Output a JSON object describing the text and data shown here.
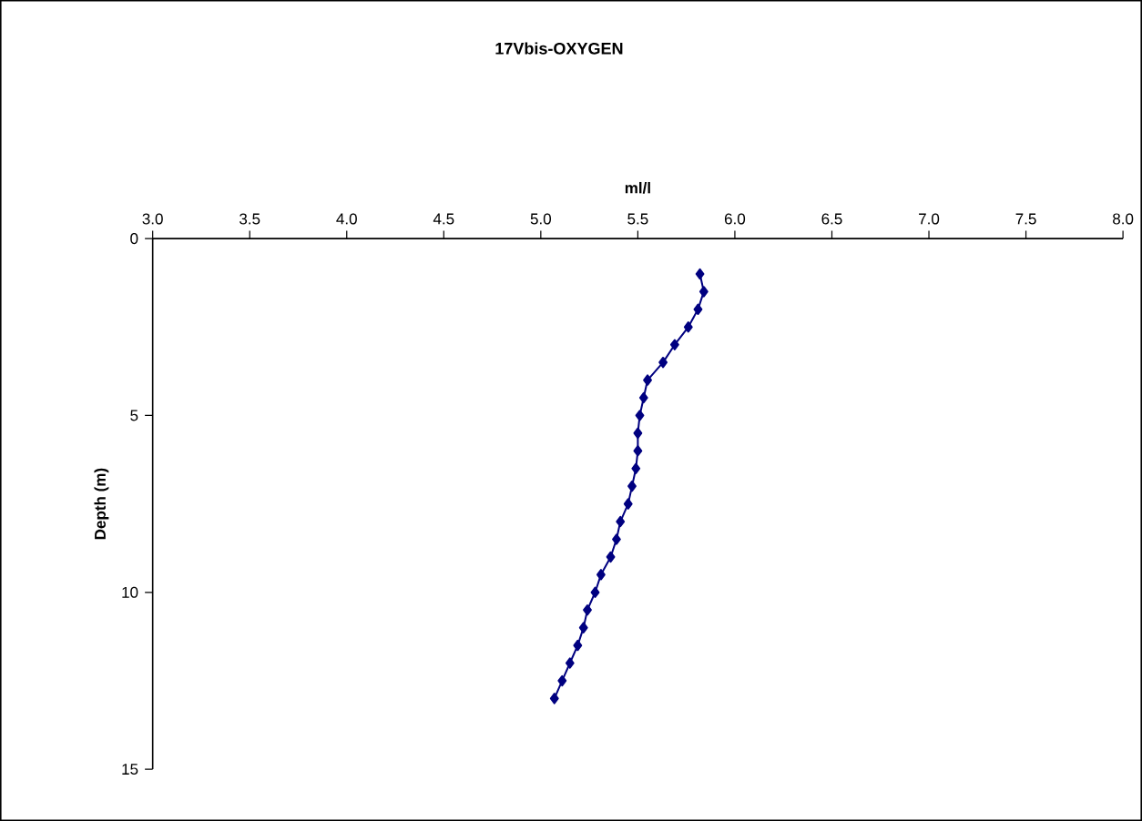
{
  "chart_data": {
    "type": "line",
    "title": "17Vbis-OXYGEN",
    "xlabel": "ml/l",
    "ylabel": "Depth (m)",
    "x": [
      5.82,
      5.84,
      5.81,
      5.76,
      5.69,
      5.63,
      5.55,
      5.53,
      5.51,
      5.5,
      5.5,
      5.49,
      5.47,
      5.45,
      5.41,
      5.39,
      5.36,
      5.31,
      5.28,
      5.24,
      5.22,
      5.19,
      5.15,
      5.11,
      5.07
    ],
    "values": [
      1,
      1.5,
      2,
      2.5,
      3,
      3.5,
      4,
      4.5,
      5,
      5.5,
      6,
      6.5,
      7,
      7.5,
      8,
      8.5,
      9,
      9.5,
      10,
      10.5,
      11,
      11.5,
      12,
      12.5,
      13
    ],
    "color": "#000080",
    "marker": "diamond",
    "line_style": "solid",
    "xlim": [
      3.0,
      8.0
    ],
    "xticks": [
      {
        "value": 3,
        "label": "3.0"
      },
      {
        "value": 3.5,
        "label": "3.5"
      },
      {
        "value": 4,
        "label": "4.0"
      },
      {
        "value": 4.5,
        "label": "4.5"
      },
      {
        "value": 5,
        "label": "5.0"
      },
      {
        "value": 5.5,
        "label": "5.5"
      },
      {
        "value": 6,
        "label": "6.0"
      },
      {
        "value": 6.5,
        "label": "6.5"
      },
      {
        "value": 7,
        "label": "7.0"
      },
      {
        "value": 7.5,
        "label": "7.5"
      },
      {
        "value": 8,
        "label": "8.0"
      }
    ],
    "ylim": [
      15,
      0
    ],
    "yticks": [
      0,
      5,
      10,
      15
    ]
  }
}
